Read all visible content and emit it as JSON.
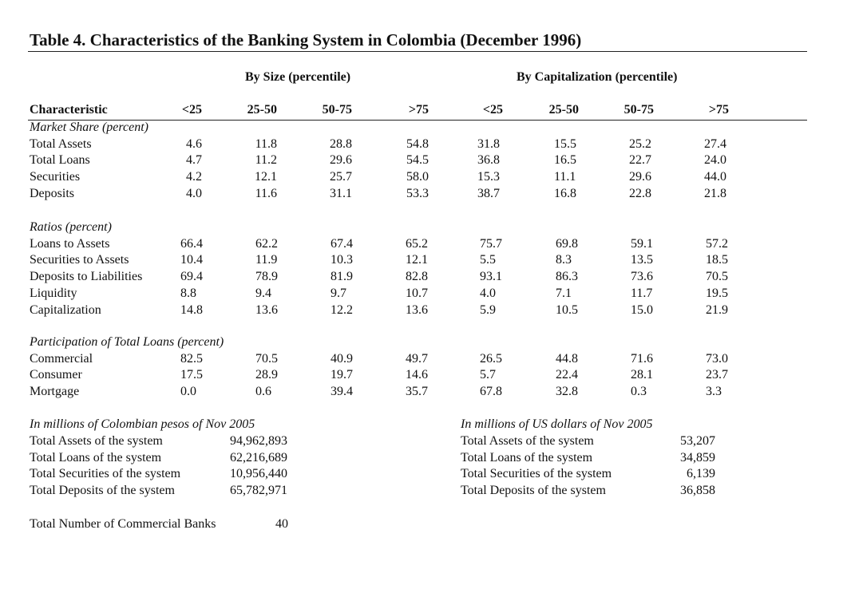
{
  "title": "Table 4.  Characteristics of the Banking System in Colombia (December 1996)",
  "group_headers": {
    "size": "By Size (percentile)",
    "cap": "By Capitalization (percentile)"
  },
  "column_header": "Characteristic",
  "columns": [
    "<25",
    "25-50",
    "50-75",
    ">75",
    "<25",
    "25-50",
    "50-75",
    ">75"
  ],
  "sections": [
    {
      "heading": "Market Share (percent)",
      "rows": [
        {
          "label": "Total Assets",
          "values": [
            "4.6",
            "11.8",
            "28.8",
            "54.8",
            "31.8",
            "15.5",
            "25.2",
            "27.4"
          ]
        },
        {
          "label": "Total Loans",
          "values": [
            "4.7",
            "11.2",
            "29.6",
            "54.5",
            "36.8",
            "16.5",
            "22.7",
            "24.0"
          ]
        },
        {
          "label": "Securities",
          "values": [
            "4.2",
            "12.1",
            "25.7",
            "58.0",
            "15.3",
            "11.1",
            "29.6",
            "44.0"
          ]
        },
        {
          "label": "Deposits",
          "values": [
            "4.0",
            "11.6",
            "31.1",
            "53.3",
            "38.7",
            "16.8",
            "22.8",
            "21.8"
          ]
        }
      ]
    },
    {
      "heading": "Ratios (percent)",
      "rows": [
        {
          "label": "Loans to Assets",
          "values": [
            "66.4",
            "62.2",
            "67.4",
            "65.2",
            "75.7",
            "69.8",
            "59.1",
            "57.2"
          ]
        },
        {
          "label": "Securities to Assets",
          "values": [
            "10.4",
            "11.9",
            "10.3",
            "12.1",
            "5.5",
            "8.3",
            "13.5",
            "18.5"
          ]
        },
        {
          "label": "Deposits to Liabilities",
          "values": [
            "69.4",
            "78.9",
            "81.9",
            "82.8",
            "93.1",
            "86.3",
            "73.6",
            "70.5"
          ]
        },
        {
          "label": "Liquidity",
          "values": [
            "8.8",
            "9.4",
            "9.7",
            "10.7",
            "4.0",
            "7.1",
            "11.7",
            "19.5"
          ]
        },
        {
          "label": "Capitalization",
          "values": [
            "14.8",
            "13.6",
            "12.2",
            "13.6",
            "5.9",
            "10.5",
            "15.0",
            "21.9"
          ]
        }
      ]
    },
    {
      "heading": "Participation of Total Loans (percent)",
      "rows": [
        {
          "label": "Commercial",
          "values": [
            "82.5",
            "70.5",
            "40.9",
            "49.7",
            "26.5",
            "44.8",
            "71.6",
            "73.0"
          ]
        },
        {
          "label": "Consumer",
          "values": [
            "17.5",
            "28.9",
            "19.7",
            "14.6",
            "5.7",
            "22.4",
            "28.1",
            "23.7"
          ]
        },
        {
          "label": "Mortgage",
          "values": [
            "0.0",
            "0.6",
            "39.4",
            "35.7",
            "67.8",
            "32.8",
            "0.3",
            "3.3"
          ]
        }
      ]
    }
  ],
  "pesos": {
    "heading": "In millions of Colombian pesos of Nov 2005",
    "rows": [
      {
        "label": "Total Assets of the system",
        "value": "94,962,893"
      },
      {
        "label": "Total Loans of the system",
        "value": "62,216,689"
      },
      {
        "label": "Total Securities of the system",
        "value": "10,956,440"
      },
      {
        "label": "Total Deposits of the system",
        "value": "65,782,971"
      }
    ]
  },
  "dollars": {
    "heading": "In millions of US dollars of Nov 2005",
    "rows": [
      {
        "label": "Total Assets of the system",
        "value": "53,207"
      },
      {
        "label": "Total Loans of the system",
        "value": "34,859"
      },
      {
        "label": "Total Securities of the system",
        "value": "6,139"
      },
      {
        "label": "Total Deposits of the system",
        "value": "36,858"
      }
    ]
  },
  "banks": {
    "label": "Total Number of Commercial Banks",
    "value": "40"
  }
}
